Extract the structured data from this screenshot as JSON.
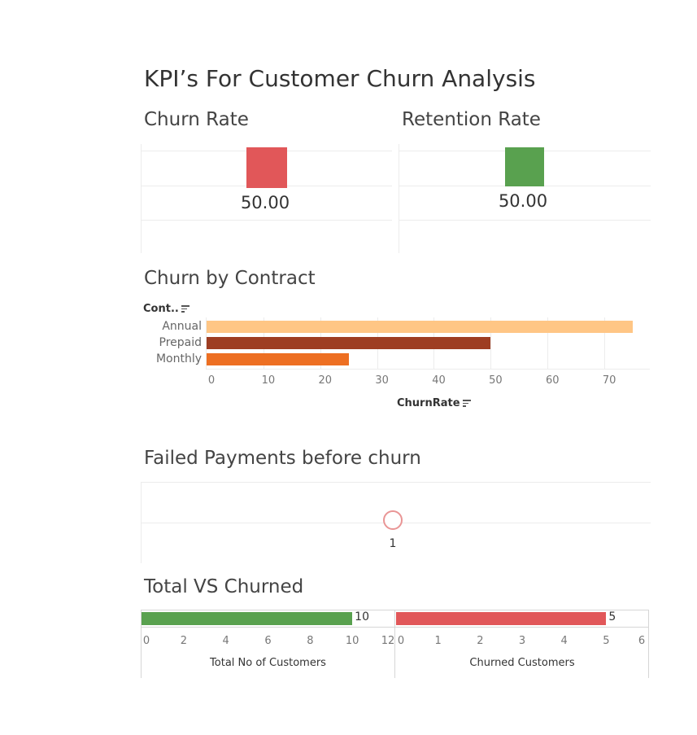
{
  "dashboard": {
    "title": "KPI’s For Customer Churn Analysis"
  },
  "churn_rate": {
    "title": "Churn Rate",
    "value": "50.00",
    "color": "#e15759"
  },
  "retention_rate": {
    "title": "Retention Rate",
    "value": "50.00",
    "color": "#59a14f"
  },
  "contract": {
    "title": "Churn by Contract",
    "dimension_label": "Cont.."
  },
  "failed_payments": {
    "title": "Failed Payments before churn"
  },
  "total_vs_churned": {
    "title": "Total VS Churned"
  },
  "chart_data": [
    {
      "type": "bar",
      "orientation": "horizontal",
      "title": "Churn by Contract",
      "ylabel": "Cont..",
      "xlabel": "ChurnRate",
      "categories": [
        "Annual",
        "Prepaid",
        "Monthly"
      ],
      "values": [
        75,
        50,
        25
      ],
      "colors": [
        "#ffc685",
        "#9e3d22",
        "#ed6f22"
      ],
      "xlim": [
        0,
        78
      ],
      "xticks": [
        0,
        10,
        20,
        30,
        40,
        50,
        60,
        70
      ],
      "grid": true
    },
    {
      "type": "scatter",
      "title": "Failed Payments before churn",
      "points": [
        {
          "label": "1",
          "value": 1
        }
      ],
      "marker": "circle",
      "color": "#e99595"
    },
    {
      "type": "bar",
      "orientation": "horizontal",
      "title": "Total VS Churned",
      "panels": [
        {
          "xlabel": "Total No of Customers",
          "value": 10,
          "label": "10",
          "color": "#59a14f",
          "xlim": [
            0,
            12
          ],
          "xticks": [
            0,
            2,
            4,
            6,
            8,
            10,
            12
          ]
        },
        {
          "xlabel": "Churned Customers",
          "value": 5,
          "label": "5",
          "color": "#e15759",
          "xlim": [
            0,
            6
          ],
          "xticks": [
            0,
            1,
            2,
            3,
            4,
            5,
            6
          ]
        }
      ]
    }
  ]
}
